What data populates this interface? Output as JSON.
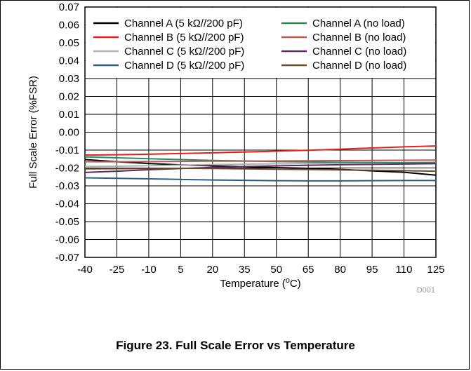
{
  "chart_data": {
    "type": "line",
    "ylabel": "Full Scale Error (%FSR)",
    "xlabel": "Temperature (°C)",
    "xlabel_parts": [
      "Temperature (",
      "o",
      "C)"
    ],
    "code": "D001",
    "x": [
      -40,
      -25,
      -10,
      5,
      20,
      35,
      50,
      65,
      80,
      95,
      110,
      125
    ],
    "x_ticks": [
      "-40",
      "-25",
      "-10",
      "5",
      "20",
      "35",
      "50",
      "65",
      "80",
      "95",
      "110",
      "125"
    ],
    "y_ticks": [
      "-0.07",
      "-0.06",
      "-0.05",
      "-0.04",
      "-0.03",
      "-0.02",
      "-0.01",
      "0.00",
      "0.01",
      "0.02",
      "0.03",
      "0.04",
      "0.05",
      "0.06",
      "0.07"
    ],
    "xlim": [
      -40,
      125
    ],
    "ylim": [
      -0.07,
      0.07
    ],
    "grid": true,
    "legend_placement": "top (inside plot, two columns)",
    "series": [
      {
        "name": "Channel A (5 kΩ//200 pF)",
        "color": "#000000",
        "values": [
          -0.0153,
          -0.0165,
          -0.0175,
          -0.0183,
          -0.0188,
          -0.0193,
          -0.0198,
          -0.0202,
          -0.0208,
          -0.0216,
          -0.0224,
          -0.024
        ]
      },
      {
        "name": "Channel B (5 kΩ//200 pF)",
        "color": "#e8201c",
        "values": [
          -0.0128,
          -0.0126,
          -0.0123,
          -0.0119,
          -0.0115,
          -0.0111,
          -0.0106,
          -0.0101,
          -0.0095,
          -0.0088,
          -0.0082,
          -0.0077
        ]
      },
      {
        "name": "Channel C (5 kΩ//200 pF)",
        "color": "#b0b0b0",
        "values": [
          -0.0192,
          -0.019,
          -0.0187,
          -0.0184,
          -0.0181,
          -0.0179,
          -0.0177,
          -0.0175,
          -0.0173,
          -0.0171,
          -0.017,
          -0.0168
        ]
      },
      {
        "name": "Channel D (5 kΩ//200 pF)",
        "color": "#2b5f7e",
        "values": [
          -0.0255,
          -0.0258,
          -0.0261,
          -0.0264,
          -0.0267,
          -0.0269,
          -0.0271,
          -0.0272,
          -0.0272,
          -0.0271,
          -0.027,
          -0.027
        ]
      },
      {
        "name": "Channel A (no load)",
        "color": "#2f8a5d",
        "values": [
          -0.0138,
          -0.0143,
          -0.0148,
          -0.0153,
          -0.0158,
          -0.0161,
          -0.0164,
          -0.0166,
          -0.0168,
          -0.0169,
          -0.017,
          -0.017
        ]
      },
      {
        "name": "Channel B (no load)",
        "color": "#b85a5a",
        "values": [
          -0.0165,
          -0.0165,
          -0.0164,
          -0.0163,
          -0.0162,
          -0.0162,
          -0.0161,
          -0.016,
          -0.0159,
          -0.0158,
          -0.0157,
          -0.0156
        ]
      },
      {
        "name": "Channel C (no load)",
        "color": "#5a2a60",
        "values": [
          -0.0225,
          -0.0218,
          -0.021,
          -0.0203,
          -0.0197,
          -0.0192,
          -0.0188,
          -0.0185,
          -0.0182,
          -0.018,
          -0.0178,
          -0.0176
        ]
      },
      {
        "name": "Channel D (no load)",
        "color": "#6b4a2a",
        "values": [
          -0.0205,
          -0.0204,
          -0.0203,
          -0.0202,
          -0.0203,
          -0.0205,
          -0.0207,
          -0.0209,
          -0.0211,
          -0.0213,
          -0.0215,
          -0.0218
        ]
      }
    ]
  },
  "caption": "Figure 23. Full Scale Error vs Temperature"
}
